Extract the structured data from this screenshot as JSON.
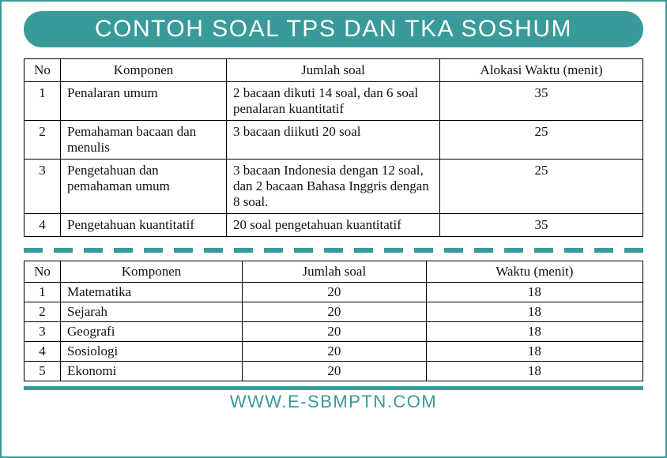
{
  "colors": {
    "accent": "#389b99",
    "border": "#000000",
    "bg": "#ffffff",
    "text": "#111111",
    "watermark": "rgba(120,120,120,0.12)"
  },
  "title": "CONTOH SOAL TPS DAN TKA SOSHUM",
  "table1": {
    "headers": {
      "no": "No",
      "komponen": "Komponen",
      "jumlah": "Jumlah soal",
      "waktu": "Alokasi Waktu (menit)"
    },
    "rows": [
      {
        "no": "1",
        "komponen": "Penalaran umum",
        "jumlah": "2 bacaan  dikuti 14 soal, dan 6 soal penalaran kuantitatif",
        "waktu": "35"
      },
      {
        "no": "2",
        "komponen": "Pemahaman bacaan dan menulis",
        "jumlah": "3 bacaan diikuti 20 soal",
        "waktu": "25"
      },
      {
        "no": "3",
        "komponen": "Pengetahuan dan pemahaman umum",
        "jumlah": "3 bacaan Indonesia dengan 12 soal, dan 2 bacaan Bahasa Inggris dengan 8 soal.",
        "waktu": "25"
      },
      {
        "no": "4",
        "komponen": "Pengetahuan kuantitatif",
        "jumlah": "20 soal pengetahuan kuantitatif",
        "waktu": "35"
      }
    ]
  },
  "table2": {
    "headers": {
      "no": "No",
      "komponen": "Komponen",
      "jumlah": "Jumlah soal",
      "waktu": "Waktu (menit)"
    },
    "rows": [
      {
        "no": "1",
        "komponen": "Matematika",
        "jumlah": "20",
        "waktu": "18"
      },
      {
        "no": "2",
        "komponen": "Sejarah",
        "jumlah": "20",
        "waktu": "18"
      },
      {
        "no": "3",
        "komponen": "Geografi",
        "jumlah": "20",
        "waktu": "18"
      },
      {
        "no": "4",
        "komponen": "Sosiologi",
        "jumlah": "20",
        "waktu": "18"
      },
      {
        "no": "5",
        "komponen": "Ekonomi",
        "jumlah": "20",
        "waktu": "18"
      }
    ]
  },
  "footer": "WWW.E-SBMPTN.COM",
  "watermark": "WWW.E-SBMPTN.COM"
}
